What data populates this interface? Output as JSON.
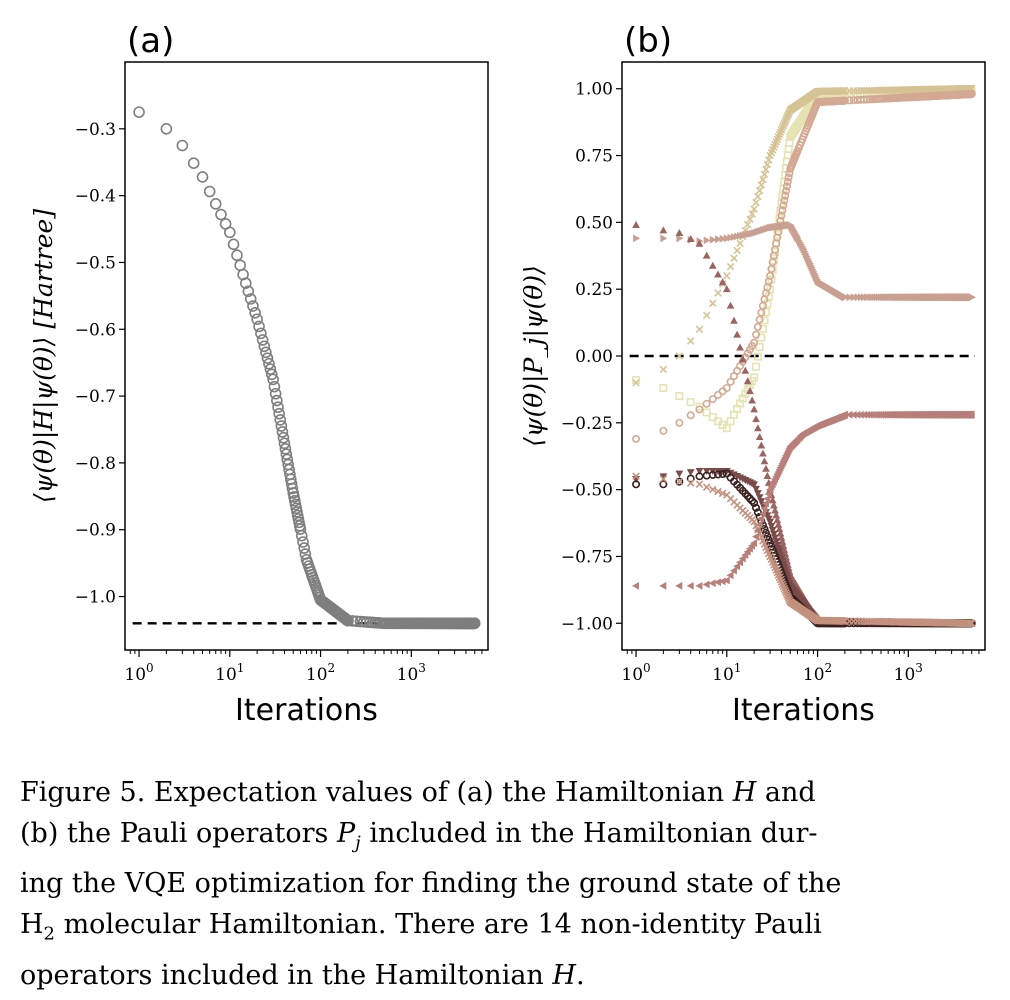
{
  "chart_data": [
    {
      "panel": "(a)",
      "type": "scatter",
      "xlabel": "Iterations",
      "ylabel": "⟨ψ(θ)|H|ψ(θ)⟩ [Hartree]",
      "xscale": "log",
      "xlim": [
        0.7,
        7000
      ],
      "ylim": [
        -1.08,
        -0.2
      ],
      "xticks": [
        "10^0",
        "10^1",
        "10^2",
        "10^3"
      ],
      "yticks": [
        "−0.3",
        "−0.4",
        "−0.5",
        "−0.6",
        "−0.7",
        "−0.8",
        "−0.9",
        "−1.0"
      ],
      "reference_line": -1.04,
      "series": [
        {
          "marker": "circle",
          "color": "#7f7f7f",
          "x": [
            1,
            2,
            3,
            5,
            10,
            20,
            30,
            50,
            70,
            100,
            200,
            500,
            1000,
            5000
          ],
          "y": [
            -0.275,
            -0.3,
            -0.325,
            -0.372,
            -0.455,
            -0.585,
            -0.675,
            -0.845,
            -0.945,
            -1.005,
            -1.036,
            -1.04,
            -1.04,
            -1.04
          ]
        }
      ]
    },
    {
      "panel": "(b)",
      "type": "scatter",
      "xlabel": "Iterations",
      "ylabel": "⟨ψ(θ)|P_j|ψ(θ)⟩",
      "xscale": "log",
      "xlim": [
        0.7,
        7000
      ],
      "ylim": [
        -1.1,
        1.1
      ],
      "xticks": [
        "10^0",
        "10^1",
        "10^2",
        "10^3"
      ],
      "yticks": [
        "1.00",
        "0.75",
        "0.50",
        "0.25",
        "0.00",
        "−0.25",
        "−0.50",
        "−0.75",
        "−1.00"
      ],
      "reference_line": 0.0,
      "series": [
        {
          "marker": "square",
          "color": "#e6e3b2",
          "x": [
            1,
            2,
            3,
            5,
            10,
            20,
            30,
            50,
            100,
            5000
          ],
          "y": [
            -0.09,
            -0.12,
            -0.15,
            -0.19,
            -0.27,
            -0.08,
            0.25,
            0.82,
            0.98,
            0.99
          ]
        },
        {
          "marker": "x",
          "color": "#d6c395",
          "x": [
            1,
            2,
            3,
            5,
            10,
            20,
            30,
            50,
            100,
            5000
          ],
          "y": [
            -0.1,
            -0.05,
            0.0,
            0.1,
            0.3,
            0.55,
            0.75,
            0.92,
            0.99,
            1.0
          ]
        },
        {
          "marker": "circle",
          "color": "#d4a994",
          "x": [
            1,
            2,
            3,
            5,
            10,
            20,
            30,
            50,
            100,
            5000
          ],
          "y": [
            -0.31,
            -0.28,
            -0.25,
            -0.2,
            -0.12,
            0.05,
            0.3,
            0.7,
            0.95,
            0.98
          ]
        },
        {
          "marker": "triangle-right",
          "color": "#c9a092",
          "x": [
            1,
            2,
            3,
            5,
            10,
            20,
            30,
            50,
            70,
            100,
            200,
            5000
          ],
          "y": [
            0.44,
            0.44,
            0.44,
            0.43,
            0.44,
            0.46,
            0.48,
            0.49,
            0.4,
            0.28,
            0.22,
            0.22
          ]
        },
        {
          "marker": "triangle-up",
          "color": "#9a6461",
          "x": [
            1,
            2,
            3,
            5,
            10,
            20,
            30,
            50,
            100,
            5000
          ],
          "y": [
            0.49,
            0.47,
            0.46,
            0.42,
            0.25,
            -0.2,
            -0.5,
            -0.82,
            -0.99,
            -1.0
          ]
        },
        {
          "marker": "triangle-down",
          "color": "#7a4b49",
          "x": [
            1,
            2,
            3,
            5,
            10,
            20,
            30,
            50,
            100,
            5000
          ],
          "y": [
            -0.46,
            -0.45,
            -0.44,
            -0.43,
            -0.43,
            -0.48,
            -0.62,
            -0.86,
            -0.99,
            -1.0
          ]
        },
        {
          "marker": "circle",
          "color": "#3a2220",
          "x": [
            1,
            2,
            3,
            5,
            10,
            20,
            30,
            50,
            100,
            5000
          ],
          "y": [
            -0.48,
            -0.48,
            -0.47,
            -0.45,
            -0.44,
            -0.55,
            -0.7,
            -0.9,
            -1.0,
            -1.0
          ]
        },
        {
          "marker": "x",
          "color": "#c4917f",
          "x": [
            1,
            2,
            3,
            5,
            10,
            20,
            30,
            50,
            100,
            5000
          ],
          "y": [
            -0.45,
            -0.46,
            -0.47,
            -0.48,
            -0.52,
            -0.62,
            -0.75,
            -0.92,
            -0.99,
            -1.0
          ]
        },
        {
          "marker": "triangle-left",
          "color": "#b87f7b",
          "x": [
            1,
            2,
            3,
            5,
            10,
            20,
            30,
            50,
            70,
            100,
            200,
            5000
          ],
          "y": [
            -0.86,
            -0.86,
            -0.86,
            -0.86,
            -0.84,
            -0.7,
            -0.5,
            -0.34,
            -0.29,
            -0.26,
            -0.22,
            -0.22
          ]
        }
      ]
    }
  ],
  "caption": {
    "line1_pre": "Figure 5.  Expectation values of (a) the Hamiltonian ",
    "line1_var": "H",
    "line1_post": " and",
    "line2_pre": "(b) the Pauli operators ",
    "line2_var": "P",
    "line2_sub": "j",
    "line2_post": " included in the Hamiltonian dur-",
    "line3": "ing the VQE optimization for finding the ground state of the",
    "line4_pre": "H",
    "line4_sub": "2",
    "line4_post": " molecular Hamiltonian.  There are 14 non-identity Pauli",
    "line5_pre": "operators included in the Hamiltonian ",
    "line5_var": "H",
    "line5_post": "."
  }
}
